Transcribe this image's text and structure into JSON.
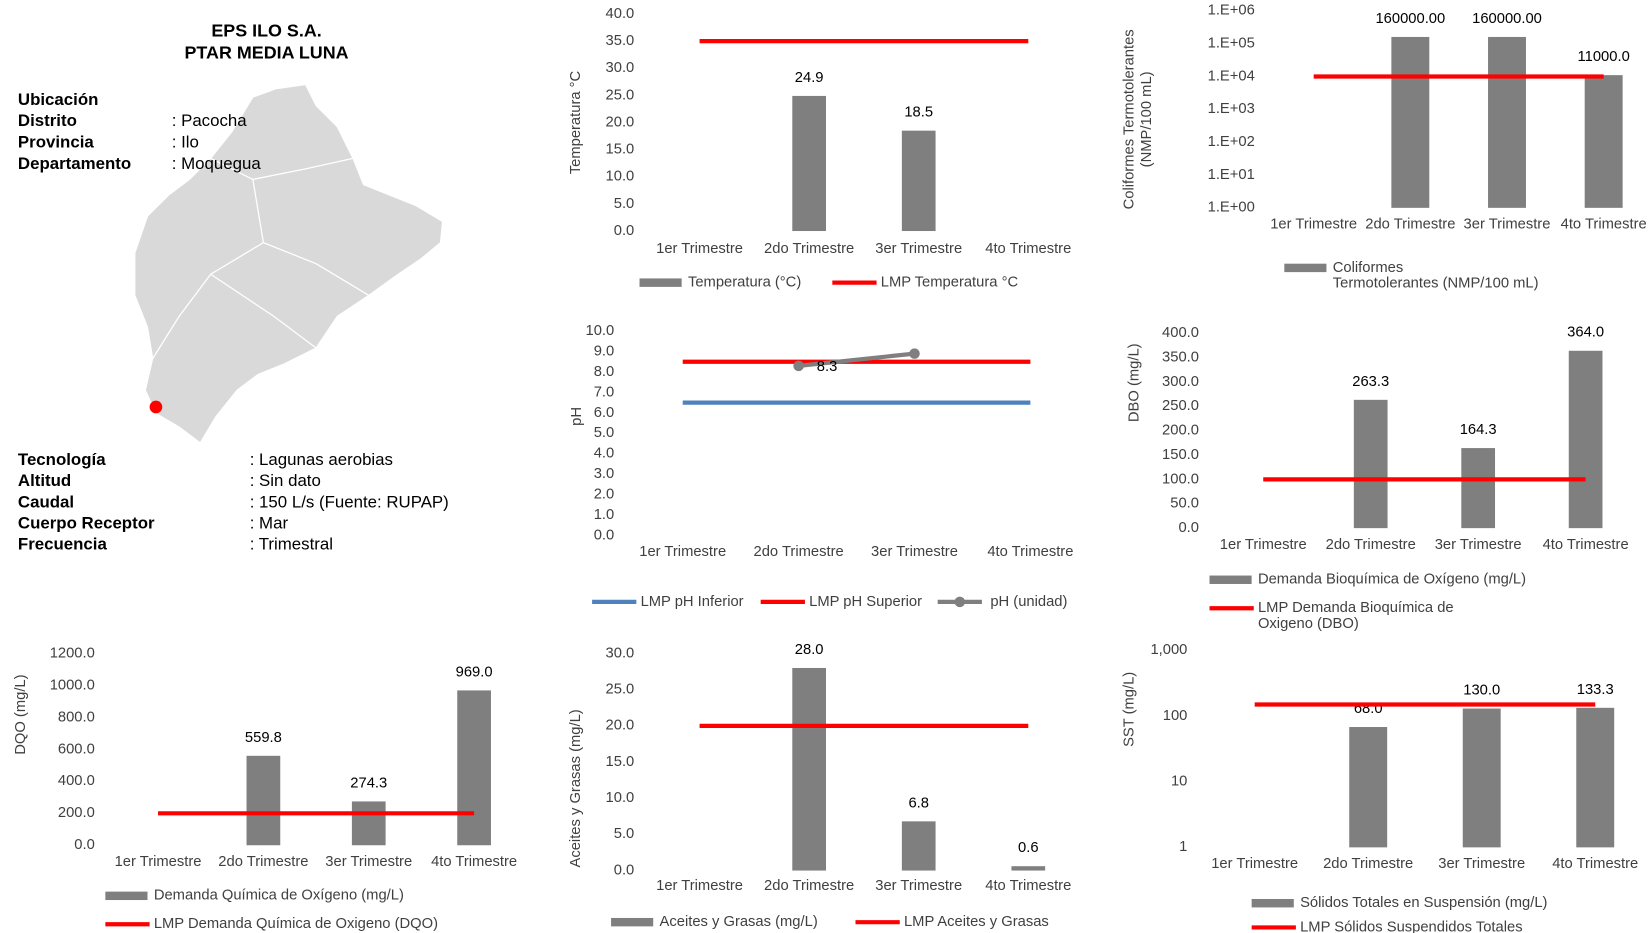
{
  "header": {
    "title_lines": [
      "EPS ILO S.A.",
      "PTAR MEDIA LUNA"
    ]
  },
  "location": {
    "heading": "Ubicación",
    "rows": [
      [
        "Distrito",
        ": Pacocha"
      ],
      [
        "Provincia",
        ": Ilo"
      ],
      [
        "Departamento",
        ": Moquegua"
      ]
    ]
  },
  "details": {
    "rows": [
      [
        "Tecnología",
        ": Lagunas aerobias"
      ],
      [
        "Altitud",
        ": Sin dato"
      ],
      [
        "Caudal",
        ": 150 L/s (Fuente: RUPAP)"
      ],
      [
        "Cuerpo Receptor",
        ": Mar"
      ],
      [
        "Frecuencia",
        ": Trimestral"
      ]
    ]
  },
  "chart_data": [
    {
      "type": "bar",
      "y_label": [
        "Temperatura °C"
      ],
      "categories": [
        "1er Trimestre",
        "2do Trimestre",
        "3er Trimestre",
        "4to Trimestre"
      ],
      "ylim": [
        0,
        40
      ],
      "yticks": [
        {
          "value": 0,
          "label": "0.0"
        },
        {
          "value": 5,
          "label": "5.0"
        },
        {
          "value": 10,
          "label": "10.0"
        },
        {
          "value": 15,
          "label": "15.0"
        },
        {
          "value": 20,
          "label": "20.0"
        },
        {
          "value": 25,
          "label": "25.0"
        },
        {
          "value": 30,
          "label": "30.0"
        },
        {
          "value": 35,
          "label": "35.0"
        },
        {
          "value": 40,
          "label": "40.0"
        }
      ],
      "series": [
        {
          "name": "Temperatura (°C)",
          "type": "bar",
          "color": "#7f7f7f",
          "values": [
            null,
            24.9,
            18.5,
            null
          ],
          "value_labels": [
            null,
            "24.9",
            "18.5",
            null
          ]
        },
        {
          "name": "LMP Temperatura °C",
          "type": "line",
          "color": "#ff0000",
          "values": [
            35,
            35,
            35,
            35
          ]
        }
      ]
    },
    {
      "type": "bar",
      "yscale": "log",
      "y_label": [
        "Coliformes Termotolerantes",
        "(NMP/100 mL)"
      ],
      "categories": [
        "1er Trimestre",
        "2do Trimestre",
        "3er Trimestre",
        "4to Trimestre"
      ],
      "ylim": [
        1,
        1000000
      ],
      "yticks": [
        {
          "value": 1,
          "label": "1.E+00"
        },
        {
          "value": 10,
          "label": "1.E+01"
        },
        {
          "value": 100,
          "label": "1.E+02"
        },
        {
          "value": 1000,
          "label": "1.E+03"
        },
        {
          "value": 10000,
          "label": "1.E+04"
        },
        {
          "value": 100000,
          "label": "1.E+05"
        },
        {
          "value": 1000000,
          "label": "1.E+06"
        }
      ],
      "series": [
        {
          "name": "Coliformes Termotolerantes (NMP/100 mL)",
          "type": "bar",
          "color": "#7f7f7f",
          "values": [
            null,
            160000,
            160000,
            11000
          ],
          "value_labels": [
            null,
            "160000.00",
            "160000.00",
            "11000.0"
          ]
        },
        {
          "type": "line",
          "color": "#ff0000",
          "values": [
            10000,
            10000,
            10000,
            10000
          ]
        }
      ]
    },
    {
      "type": "line",
      "y_label": [
        "pH"
      ],
      "categories": [
        "1er Trimestre",
        "2do Trimestre",
        "3er Trimestre",
        "4to Trimestre"
      ],
      "ylim": [
        0,
        10
      ],
      "yticks": [
        {
          "value": 0,
          "label": "0.0"
        },
        {
          "value": 1,
          "label": "1.0"
        },
        {
          "value": 2,
          "label": "2.0"
        },
        {
          "value": 3,
          "label": "3.0"
        },
        {
          "value": 4,
          "label": "4.0"
        },
        {
          "value": 5,
          "label": "5.0"
        },
        {
          "value": 6,
          "label": "6.0"
        },
        {
          "value": 7,
          "label": "7.0"
        },
        {
          "value": 8,
          "label": "8.0"
        },
        {
          "value": 9,
          "label": "9.0"
        },
        {
          "value": 10,
          "label": "10.0"
        }
      ],
      "series": [
        {
          "name": "LMP pH Inferior",
          "type": "line",
          "color": "#4f81bd",
          "values": [
            6.5,
            6.5,
            6.5,
            6.5
          ]
        },
        {
          "name": "LMP pH Superior",
          "type": "line",
          "color": "#ff0000",
          "values": [
            8.5,
            8.5,
            8.5,
            8.5
          ]
        },
        {
          "name": "pH (unidad)",
          "type": "line",
          "marker": true,
          "color": "#7f7f7f",
          "values": [
            null,
            8.3,
            8.9,
            null
          ],
          "value_labels": [
            null,
            "8.3",
            null,
            null
          ]
        }
      ]
    },
    {
      "type": "bar",
      "y_label": [
        "DBO (mg/L)"
      ],
      "categories": [
        "1er Trimestre",
        "2do Trimestre",
        "3er Trimestre",
        "4to Trimestre"
      ],
      "ylim": [
        0,
        400
      ],
      "yticks": [
        {
          "value": 0,
          "label": "0.0"
        },
        {
          "value": 50,
          "label": "50.0"
        },
        {
          "value": 100,
          "label": "100.0"
        },
        {
          "value": 150,
          "label": "150.0"
        },
        {
          "value": 200,
          "label": "200.0"
        },
        {
          "value": 250,
          "label": "250.0"
        },
        {
          "value": 300,
          "label": "300.0"
        },
        {
          "value": 350,
          "label": "350.0"
        },
        {
          "value": 400,
          "label": "400.0"
        }
      ],
      "series": [
        {
          "name": "Demanda Bioquímica de Oxígeno (mg/L)",
          "type": "bar",
          "color": "#7f7f7f",
          "values": [
            null,
            263.3,
            164.3,
            364.0
          ],
          "value_labels": [
            null,
            "263.3",
            "164.3",
            "364.0"
          ]
        },
        {
          "name": "LMP Demanda Bioquímica de Oxigeno (DBO)",
          "type": "line",
          "color": "#ff0000",
          "values": [
            100,
            100,
            100,
            100
          ]
        }
      ]
    },
    {
      "type": "bar",
      "y_label": [
        "DQO (mg/L)"
      ],
      "categories": [
        "1er Trimestre",
        "2do Trimestre",
        "3er Trimestre",
        "4to Trimestre"
      ],
      "ylim": [
        0,
        1200
      ],
      "yticks": [
        {
          "value": 0,
          "label": "0.0"
        },
        {
          "value": 200,
          "label": "200.0"
        },
        {
          "value": 400,
          "label": "400.0"
        },
        {
          "value": 600,
          "label": "600.0"
        },
        {
          "value": 800,
          "label": "800.0"
        },
        {
          "value": 1000,
          "label": "1000.0"
        },
        {
          "value": 1200,
          "label": "1200.0"
        }
      ],
      "series": [
        {
          "name": "Demanda Química de Oxígeno (mg/L)",
          "type": "bar",
          "color": "#7f7f7f",
          "values": [
            null,
            559.8,
            274.3,
            969.0
          ],
          "value_labels": [
            null,
            "559.8",
            "274.3",
            "969.0"
          ]
        },
        {
          "name": "LMP Demanda Química de Oxigeno (DQO)",
          "type": "line",
          "color": "#ff0000",
          "values": [
            200,
            200,
            200,
            200
          ]
        }
      ]
    },
    {
      "type": "bar",
      "y_label": [
        "Aceites y Grasas (mg/L)"
      ],
      "categories": [
        "1er Trimestre",
        "2do Trimestre",
        "3er Trimestre",
        "4to Trimestre"
      ],
      "ylim": [
        0,
        30
      ],
      "yticks": [
        {
          "value": 0,
          "label": "0.0"
        },
        {
          "value": 5,
          "label": "5.0"
        },
        {
          "value": 10,
          "label": "10.0"
        },
        {
          "value": 15,
          "label": "15.0"
        },
        {
          "value": 20,
          "label": "20.0"
        },
        {
          "value": 25,
          "label": "25.0"
        },
        {
          "value": 30,
          "label": "30.0"
        }
      ],
      "series": [
        {
          "name": "Aceites y Grasas (mg/L)",
          "type": "bar",
          "color": "#7f7f7f",
          "values": [
            null,
            28.0,
            6.8,
            0.6
          ],
          "value_labels": [
            null,
            "28.0",
            "6.8",
            "0.6"
          ]
        },
        {
          "name": "LMP Aceites y Grasas",
          "type": "line",
          "color": "#ff0000",
          "values": [
            20,
            20,
            20,
            20
          ]
        }
      ]
    },
    {
      "type": "bar",
      "yscale": "log",
      "y_label": [
        "SST (mg/L)"
      ],
      "categories": [
        "1er Trimestre",
        "2do Trimestre",
        "3er Trimestre",
        "4to Trimestre"
      ],
      "ylim": [
        1,
        1000
      ],
      "yticks": [
        1,
        10,
        100,
        {
          "value": 1000,
          "label": "1,000"
        }
      ],
      "series": [
        {
          "name": "Sólidos Totales en Suspensión (mg/L)",
          "type": "bar",
          "color": "#7f7f7f",
          "values": [
            null,
            68.0,
            130.0,
            133.3
          ],
          "value_labels": [
            null,
            "68.0",
            "130.0",
            "133.3"
          ]
        },
        {
          "name": "LMP Sólidos Suspendidos Totales",
          "type": "line",
          "color": "#ff0000",
          "values": [
            150,
            150,
            150,
            150
          ]
        }
      ]
    }
  ]
}
